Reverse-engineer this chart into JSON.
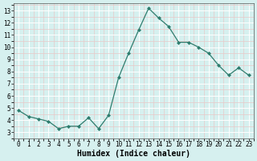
{
  "x": [
    0,
    1,
    2,
    3,
    4,
    5,
    6,
    7,
    8,
    9,
    10,
    11,
    12,
    13,
    14,
    15,
    16,
    17,
    18,
    19,
    20,
    21,
    22,
    23
  ],
  "y": [
    4.8,
    4.3,
    4.1,
    3.9,
    3.3,
    3.5,
    3.5,
    4.2,
    3.3,
    4.4,
    7.5,
    9.5,
    11.4,
    13.2,
    12.4,
    11.7,
    10.4,
    10.4,
    10.0,
    9.5,
    8.5,
    7.7,
    8.3,
    7.7
  ],
  "line_color": "#2e7d6e",
  "marker": "D",
  "markersize": 2.0,
  "linewidth": 0.9,
  "bg_color": "#d6f0ef",
  "grid_color_major": "#ffffff",
  "grid_color_minor": "#e8c8c8",
  "xlabel": "Humidex (Indice chaleur)",
  "xlabel_fontsize": 7,
  "ylabel_ticks": [
    3,
    4,
    5,
    6,
    7,
    8,
    9,
    10,
    11,
    12,
    13
  ],
  "xlim": [
    -0.5,
    23.5
  ],
  "ylim": [
    2.6,
    13.6
  ],
  "xtick_fontsize": 5.5,
  "ytick_fontsize": 5.5
}
